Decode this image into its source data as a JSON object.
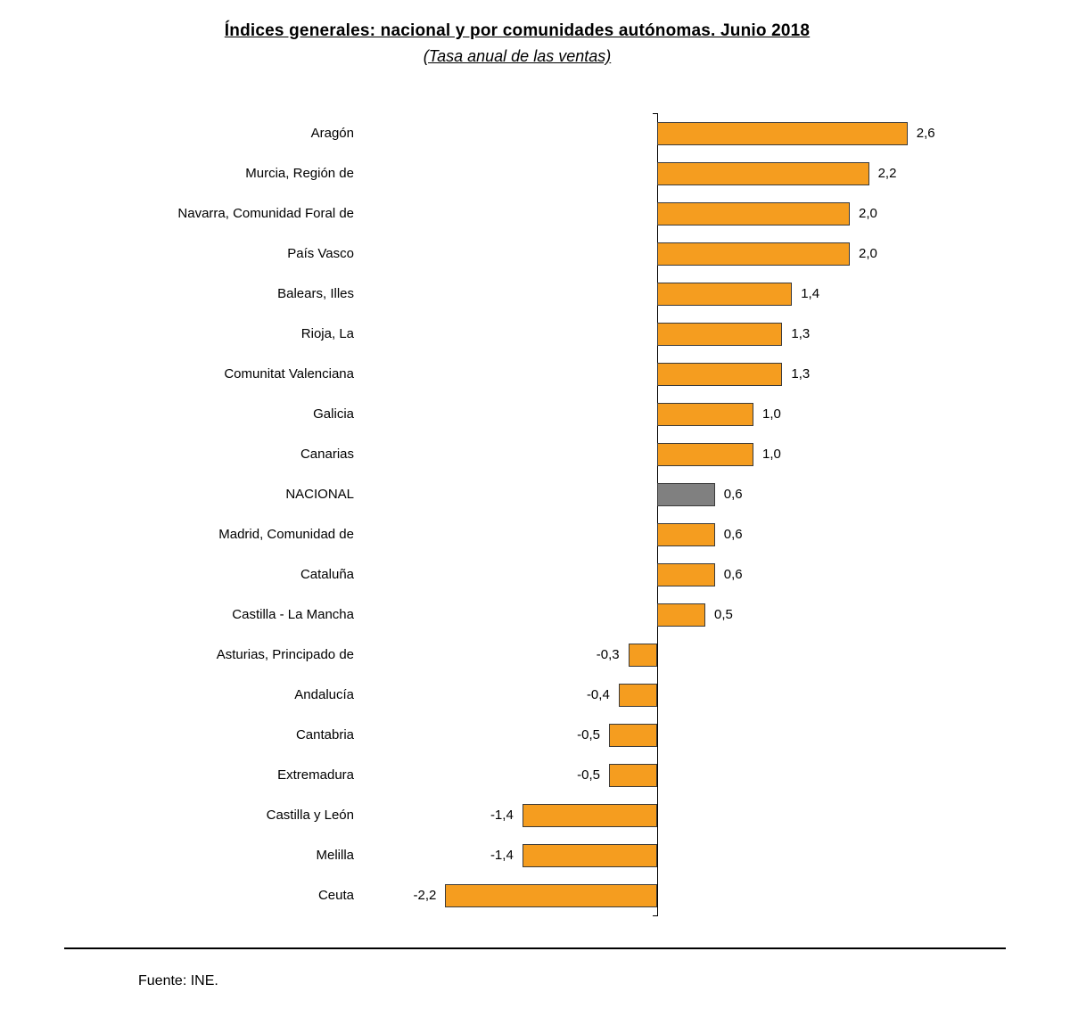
{
  "title": "Índices generales: nacional y por comunidades autónomas. Junio 2018",
  "subtitle": "(Tasa anual de las ventas)",
  "footer": "Fuente: INE.",
  "colors": {
    "bar": "#F59D1F",
    "national_bar": "#808080",
    "bar_border": "#3a3a3a",
    "axis": "#000000"
  },
  "chart_data": {
    "type": "bar",
    "orientation": "horizontal",
    "title": "Índices generales: nacional y por comunidades autónomas. Junio 2018",
    "subtitle": "(Tasa anual de las ventas)",
    "xlim": [
      -2.6,
      2.8
    ],
    "grid": false,
    "legend": false,
    "highlight_category": "NACIONAL",
    "categories": [
      "Aragón",
      "Murcia, Región de",
      "Navarra, Comunidad Foral de",
      "País Vasco",
      "Balears, Illes",
      "Rioja, La",
      "Comunitat Valenciana",
      "Galicia",
      "Canarias",
      "NACIONAL",
      "Madrid, Comunidad de",
      "Cataluña",
      "Castilla - La Mancha",
      "Asturias, Principado de",
      "Andalucía",
      "Cantabria",
      "Extremadura",
      "Castilla y León",
      "Melilla",
      "Ceuta"
    ],
    "values": [
      2.6,
      2.2,
      2.0,
      2.0,
      1.4,
      1.3,
      1.3,
      1.0,
      1.0,
      0.6,
      0.6,
      0.6,
      0.5,
      -0.3,
      -0.4,
      -0.5,
      -0.5,
      -1.4,
      -1.4,
      -2.2
    ],
    "value_labels": [
      "2,6",
      "2,2",
      "2,0",
      "2,0",
      "1,4",
      "1,3",
      "1,3",
      "1,0",
      "1,0",
      "0,6",
      "0,6",
      "0,6",
      "0,5",
      "-0,3",
      "-0,4",
      "-0,5",
      "-0,5",
      "-1,4",
      "-1,4",
      "-2,2"
    ]
  }
}
